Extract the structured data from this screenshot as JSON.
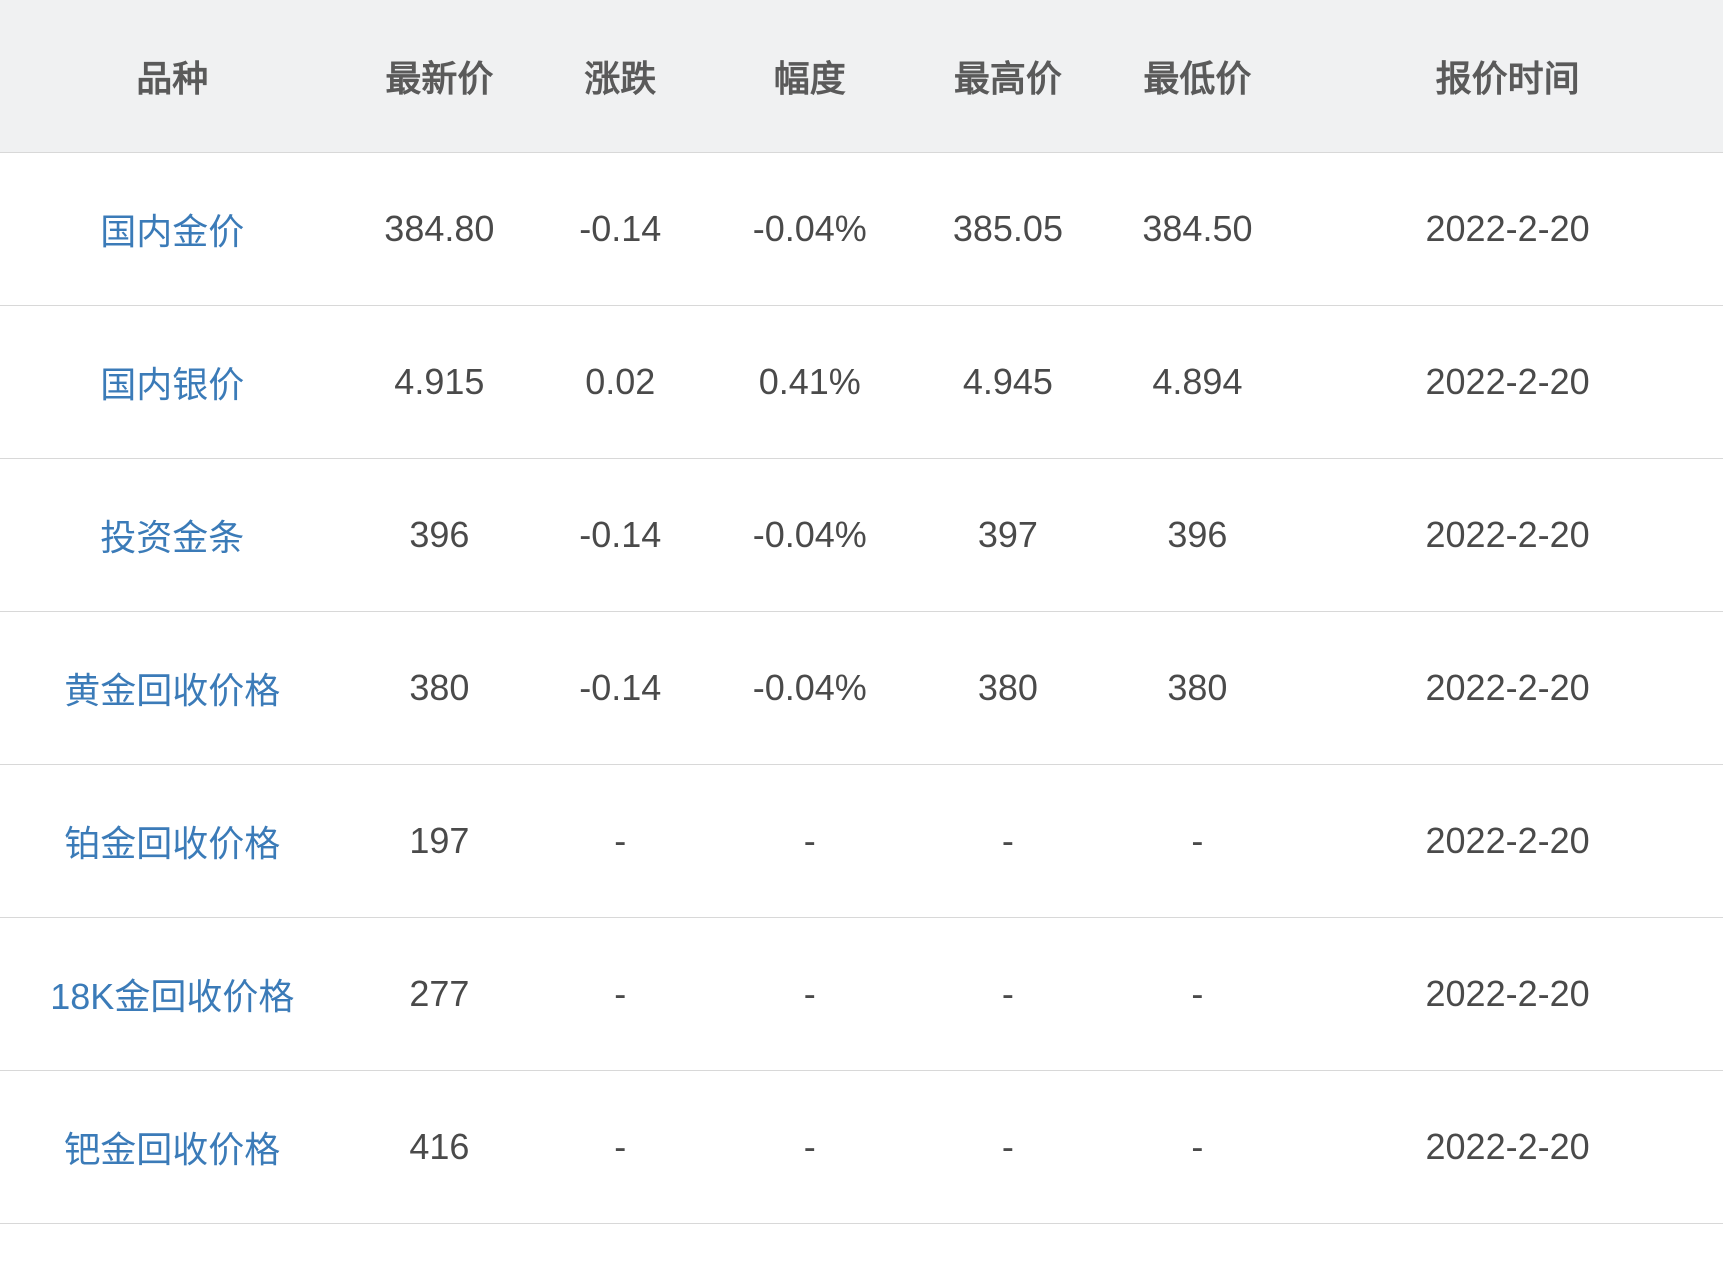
{
  "table": {
    "type": "table",
    "columns": [
      {
        "key": "product",
        "label": "品种",
        "width_pct": 20
      },
      {
        "key": "latest",
        "label": "最新价",
        "width_pct": 11
      },
      {
        "key": "change",
        "label": "涨跌",
        "width_pct": 10
      },
      {
        "key": "pct",
        "label": "幅度",
        "width_pct": 12
      },
      {
        "key": "high",
        "label": "最高价",
        "width_pct": 11
      },
      {
        "key": "low",
        "label": "最低价",
        "width_pct": 11
      },
      {
        "key": "time",
        "label": "报价时间",
        "width_pct": 25
      }
    ],
    "rows": [
      {
        "product": "国内金价",
        "latest": "384.80",
        "change": "-0.14",
        "pct": "-0.04%",
        "high": "385.05",
        "low": "384.50",
        "time": "2022-2-20"
      },
      {
        "product": "国内银价",
        "latest": "4.915",
        "change": "0.02",
        "pct": "0.41%",
        "high": "4.945",
        "low": "4.894",
        "time": "2022-2-20"
      },
      {
        "product": "投资金条",
        "latest": "396",
        "change": "-0.14",
        "pct": "-0.04%",
        "high": "397",
        "low": "396",
        "time": "2022-2-20"
      },
      {
        "product": "黄金回收价格",
        "latest": "380",
        "change": "-0.14",
        "pct": "-0.04%",
        "high": "380",
        "low": "380",
        "time": "2022-2-20"
      },
      {
        "product": "铂金回收价格",
        "latest": "197",
        "change": "-",
        "pct": "-",
        "high": "-",
        "low": "-",
        "time": "2022-2-20"
      },
      {
        "product": "18K金回收价格",
        "latest": "277",
        "change": "-",
        "pct": "-",
        "high": "-",
        "low": "-",
        "time": "2022-2-20"
      },
      {
        "product": "钯金回收价格",
        "latest": "416",
        "change": "-",
        "pct": "-",
        "high": "-",
        "low": "-",
        "time": "2022-2-20"
      }
    ],
    "styling": {
      "header_bg": "#f0f1f2",
      "header_text_color": "#5a5a5a",
      "row_bg": "#ffffff",
      "border_color": "#d8d8d8",
      "cell_text_color": "#4a4a4a",
      "product_link_color": "#3b7bb8",
      "header_fontsize": 36,
      "cell_fontsize": 36,
      "header_fontweight": 600,
      "row_padding_v": 50
    }
  }
}
